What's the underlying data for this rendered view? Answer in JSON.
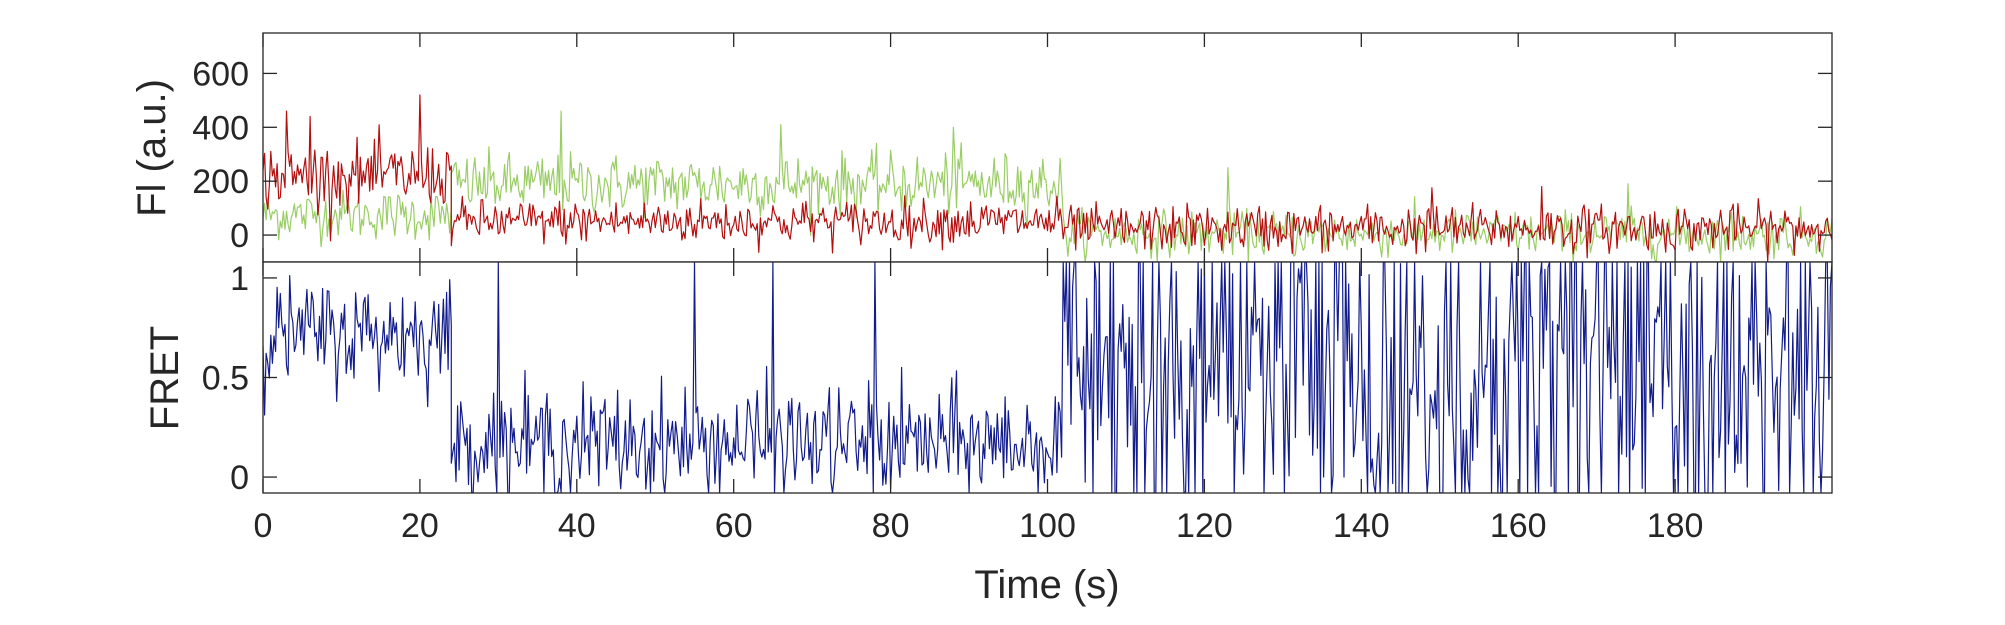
{
  "chart_data": [
    {
      "type": "line",
      "panel": "top",
      "title": "",
      "ylabel": "Fl (a.u.)",
      "xlim": [
        0,
        200
      ],
      "ylim": [
        -100,
        750
      ],
      "yticks": [
        0,
        200,
        400,
        600
      ],
      "ytick_labels": [
        "0",
        "200",
        "400",
        "600"
      ],
      "grid": false,
      "legend": "none",
      "series": [
        {
          "color": "#9acd65",
          "segments": [
            {
              "x": [
                0,
                24
              ],
              "level": 75,
              "noise": 45
            },
            {
              "x": [
                24,
                102
              ],
              "level": 190,
              "noise": 55
            },
            {
              "x": [
                102,
                200
              ],
              "level": 5,
              "noise": 42
            }
          ],
          "spikes": [
            {
              "x": 38,
              "y": 460
            },
            {
              "x": 66,
              "y": 410
            },
            {
              "x": 88,
              "y": 400
            },
            {
              "x": 123,
              "y": 250
            },
            {
              "x": 174,
              "y": 190
            }
          ]
        },
        {
          "color": "#b40f0f",
          "segments": [
            {
              "x": [
                0,
                24
              ],
              "level": 220,
              "noise": 60
            },
            {
              "x": [
                24,
                102
              ],
              "level": 50,
              "noise": 40
            },
            {
              "x": [
                102,
                200
              ],
              "level": 25,
              "noise": 42
            }
          ],
          "spikes": [
            {
              "x": 3,
              "y": 460
            },
            {
              "x": 20,
              "y": 520
            },
            {
              "x": 6,
              "y": 440
            },
            {
              "x": 149,
              "y": 175
            },
            {
              "x": 163,
              "y": 180
            }
          ]
        }
      ]
    },
    {
      "type": "line",
      "panel": "bottom",
      "title": "",
      "xlabel": "Time (s)",
      "ylabel": "FRET",
      "xlim": [
        0,
        200
      ],
      "ylim": [
        -0.08,
        1.08
      ],
      "xticks": [
        0,
        20,
        40,
        60,
        80,
        100,
        120,
        140,
        160,
        180
      ],
      "xtick_labels": [
        "0",
        "20",
        "40",
        "60",
        "80",
        "100",
        "120",
        "140",
        "160",
        "180"
      ],
      "yticks": [
        0,
        0.5,
        1
      ],
      "ytick_labels": [
        "0",
        "0.5",
        "1"
      ],
      "grid": false,
      "legend": "none",
      "series": [
        {
          "color": "#121c8c",
          "segments": [
            {
              "x": [
                0,
                24
              ],
              "level": 0.72,
              "noise": 0.13
            },
            {
              "x": [
                24,
                102
              ],
              "level": 0.17,
              "noise": 0.14
            },
            {
              "x": [
                102,
                200
              ],
              "level": 0.5,
              "noise": 0.4
            }
          ],
          "spikes": [
            {
              "x": 30,
              "y": 1.08
            },
            {
              "x": 55,
              "y": 1.08
            },
            {
              "x": 65,
              "y": 1.08
            },
            {
              "x": 78,
              "y": 1.08
            }
          ]
        }
      ]
    }
  ]
}
